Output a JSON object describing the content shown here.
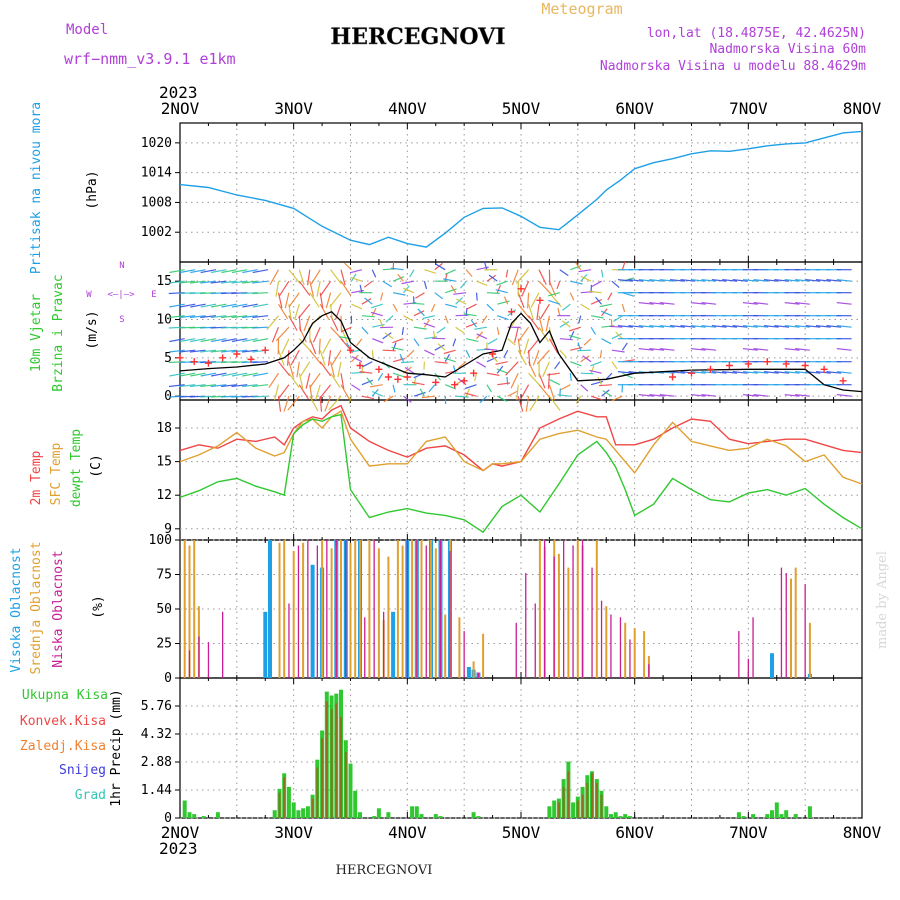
{
  "header": {
    "model_label": "Model",
    "model_value": "wrf−nmm_v3.9.1  e1km",
    "title": "HERCEGNOVI",
    "meteogram_label": "Meteogram",
    "lonlat": "lon,lat (18.4875E, 42.4625N)",
    "elevation": "Nadmorska Visina 60m",
    "model_elevation": "Nadmorska Visina u modelu 88.4629m",
    "year": "2023"
  },
  "footer": {
    "station": "HERCEGNOVI",
    "year": "2023",
    "credit": "made by Angel"
  },
  "colors": {
    "pressure": "#1ea0e6",
    "wind_speed_line": "#000000",
    "gust_marker": "#ff3030",
    "temp_2m": "#f04646",
    "temp_sfc": "#e0a030",
    "dewpoint": "#30c830",
    "cloud_high": "#1ea0e6",
    "cloud_mid": "#e0a030",
    "cloud_low": "#c81e96",
    "precip_total": "#30c830",
    "precip_conv": "#f04646",
    "precip_frozen": "#f08030",
    "precip_snow": "#3c3cdc",
    "precip_hail": "#30c8b4"
  },
  "x_axis": {
    "day_labels": [
      "2NOV",
      "3NOV",
      "4NOV",
      "5NOV",
      "6NOV",
      "7NOV",
      "8NOV"
    ],
    "range_hours": [
      0,
      144
    ]
  },
  "chart_data": [
    {
      "type": "line",
      "panel": "pressure",
      "ylabel_lines": [
        "Pritisak na nivou mora"
      ],
      "unit": "(hPa)",
      "ylim": [
        996,
        1024
      ],
      "yticks": [
        1002,
        1008,
        1014,
        1020
      ],
      "grid": true,
      "series": [
        {
          "x": [
            0,
            6,
            12,
            18,
            24,
            30,
            36,
            40,
            44,
            48,
            52,
            56,
            60,
            64,
            68,
            72,
            76,
            80,
            84,
            88,
            90,
            93,
            96,
            100,
            104,
            108,
            112,
            116,
            120,
            124,
            128,
            132,
            136,
            140,
            144
          ],
          "values": [
            1011.6,
            1011.0,
            1009.5,
            1008.4,
            1006.8,
            1003.2,
            1000.4,
            999.5,
            1001.0,
            999.7,
            999.0,
            1001.8,
            1005.0,
            1006.8,
            1006.9,
            1005.2,
            1003.0,
            1002.5,
            1005.5,
            1008.6,
            1010.5,
            1012.5,
            1014.8,
            1016.0,
            1016.8,
            1017.8,
            1018.4,
            1018.3,
            1018.8,
            1019.4,
            1019.8,
            1020.0,
            1021.0,
            1022.0,
            1022.3
          ]
        }
      ]
    },
    {
      "type": "line",
      "panel": "wind",
      "ylabel_lines": [
        "10m Vjetar",
        "Brzina i Pravac"
      ],
      "unit": "(m/s)",
      "compass_labels": {
        "north": "N",
        "south": "S",
        "west": "W",
        "east": "E",
        "arrows": "<—|—>"
      },
      "ylim": [
        -0.5,
        17.5
      ],
      "yticks": [
        0,
        5,
        10,
        15
      ],
      "grid": true,
      "series": [
        {
          "name": "speed",
          "x": [
            0,
            6,
            12,
            18,
            22,
            24,
            26,
            28,
            30,
            32,
            34,
            36,
            40,
            44,
            48,
            52,
            56,
            60,
            64,
            68,
            70,
            72,
            74,
            76,
            78,
            80,
            84,
            90,
            96,
            108,
            120,
            132,
            136,
            140,
            144
          ],
          "values": [
            3.3,
            3.6,
            3.8,
            4.2,
            5.0,
            6.0,
            7.2,
            9.5,
            10.5,
            11.0,
            9.8,
            7.0,
            5.0,
            4.0,
            3.0,
            2.8,
            2.5,
            4.0,
            5.5,
            6.0,
            9.5,
            10.8,
            9.5,
            7.0,
            8.5,
            5.5,
            2.0,
            2.2,
            3.0,
            3.4,
            3.5,
            3.5,
            1.5,
            0.8,
            0.6
          ]
        },
        {
          "name": "gusts",
          "x": [
            0,
            3,
            6,
            9,
            12,
            15,
            18,
            36,
            38,
            42,
            44,
            46,
            48,
            54,
            58,
            60,
            62,
            66,
            70,
            72,
            76,
            104,
            108,
            112,
            116,
            120,
            124,
            128,
            132,
            136,
            140
          ],
          "values": [
            5.0,
            4.5,
            4.3,
            5.0,
            5.5,
            4.8,
            6.0,
            6.0,
            4.0,
            3.5,
            2.5,
            2.2,
            2.5,
            1.8,
            1.5,
            2.0,
            3.0,
            5.5,
            11.0,
            14.0,
            12.5,
            2.5,
            3.0,
            3.5,
            4.0,
            4.2,
            4.5,
            4.2,
            4.0,
            3.5,
            2.0
          ]
        }
      ]
    },
    {
      "type": "line",
      "panel": "temperature",
      "ylabel_lines": [
        "2m Temp",
        "SFC Temp",
        "dewpt Temp"
      ],
      "unit": "(C)",
      "ylim": [
        8,
        20.5
      ],
      "yticks": [
        9,
        12,
        15,
        18
      ],
      "grid": true,
      "series": [
        {
          "name": "2m Temp",
          "x": [
            0,
            4,
            8,
            12,
            16,
            20,
            22,
            24,
            26,
            28,
            30,
            32,
            34,
            36,
            40,
            44,
            48,
            52,
            56,
            60,
            64,
            66,
            68,
            72,
            76,
            80,
            84,
            88,
            90,
            92,
            96,
            100,
            104,
            108,
            112,
            116,
            120,
            124,
            128,
            132,
            136,
            140,
            144
          ],
          "values": [
            16.0,
            16.5,
            16.2,
            17.0,
            16.8,
            17.2,
            16.5,
            18.0,
            18.6,
            19.0,
            18.8,
            19.6,
            20.0,
            18.0,
            16.8,
            16.0,
            15.4,
            16.2,
            16.4,
            15.6,
            14.2,
            14.8,
            14.6,
            15.0,
            18.0,
            18.8,
            19.5,
            19.0,
            19.0,
            16.5,
            16.5,
            17.0,
            18.0,
            18.8,
            18.6,
            17.0,
            16.6,
            16.8,
            17.0,
            17.0,
            16.5,
            16.0,
            15.8
          ]
        },
        {
          "name": "SFC Temp",
          "x": [
            0,
            4,
            8,
            12,
            16,
            20,
            22,
            24,
            26,
            28,
            30,
            32,
            34,
            36,
            40,
            44,
            48,
            52,
            56,
            60,
            64,
            66,
            68,
            72,
            76,
            80,
            84,
            88,
            90,
            92,
            96,
            100,
            104,
            108,
            112,
            116,
            120,
            124,
            128,
            132,
            136,
            140,
            144
          ],
          "values": [
            15.0,
            15.6,
            16.4,
            17.6,
            16.2,
            15.5,
            15.8,
            17.5,
            18.6,
            18.8,
            18.0,
            19.0,
            19.5,
            17.0,
            14.6,
            14.8,
            14.8,
            16.8,
            17.2,
            15.0,
            14.2,
            14.8,
            14.8,
            15.0,
            17.0,
            17.5,
            17.8,
            17.2,
            17.0,
            16.0,
            14.0,
            16.5,
            18.5,
            16.8,
            16.4,
            16.0,
            16.2,
            17.0,
            16.4,
            15.0,
            15.6,
            13.6,
            13.0
          ]
        },
        {
          "name": "dewpt Temp",
          "x": [
            0,
            4,
            8,
            12,
            16,
            20,
            22,
            24,
            26,
            28,
            30,
            32,
            34,
            36,
            40,
            44,
            48,
            52,
            56,
            60,
            64,
            68,
            72,
            76,
            80,
            84,
            88,
            90,
            92,
            94,
            96,
            100,
            104,
            108,
            112,
            116,
            120,
            124,
            128,
            132,
            136,
            140,
            144
          ],
          "values": [
            11.8,
            12.4,
            13.2,
            13.5,
            12.8,
            12.3,
            12.0,
            17.5,
            18.3,
            18.8,
            18.6,
            19.0,
            19.2,
            12.5,
            10.0,
            10.5,
            10.8,
            10.4,
            10.2,
            9.8,
            8.7,
            11.0,
            12.0,
            10.5,
            13.0,
            15.6,
            16.8,
            15.8,
            14.5,
            12.5,
            10.2,
            11.2,
            13.5,
            12.5,
            11.6,
            11.4,
            12.2,
            12.5,
            12.0,
            12.6,
            11.2,
            10.0,
            9.0
          ]
        }
      ]
    },
    {
      "type": "bar",
      "panel": "clouds",
      "ylabel_lines": [
        "Visoka Oblacnost",
        "Srednja Oblacnost",
        "Niska Oblacnost"
      ],
      "unit": "(%)",
      "ylim": [
        0,
        100
      ],
      "yticks": [
        0,
        25,
        50,
        75,
        100
      ],
      "grid": true,
      "series": [
        {
          "name": "Visoka Oblacnost",
          "x": [
            18,
            19,
            28,
            30,
            33,
            35,
            38,
            45,
            48,
            50,
            53,
            55,
            57,
            61,
            62,
            63,
            125,
            133
          ],
          "values": [
            48,
            100,
            82,
            80,
            100,
            100,
            100,
            48,
            100,
            100,
            100,
            100,
            100,
            8,
            6,
            4,
            18,
            3
          ]
        },
        {
          "name": "Srednja Oblacnost",
          "x": [
            1,
            2,
            3,
            4,
            21,
            22,
            24,
            26,
            30,
            32,
            33,
            34,
            36,
            37,
            38,
            40,
            42,
            43,
            44,
            46,
            47,
            49,
            50,
            51,
            53,
            54,
            56,
            57,
            59,
            62,
            64,
            76,
            77,
            79,
            80,
            82,
            84,
            85,
            88,
            90,
            94,
            96,
            98,
            99,
            129,
            130,
            133
          ],
          "values": [
            100,
            96,
            100,
            52,
            98,
            100,
            92,
            98,
            100,
            94,
            96,
            100,
            98,
            100,
            100,
            100,
            94,
            42,
            88,
            100,
            96,
            100,
            100,
            100,
            100,
            94,
            46,
            100,
            44,
            12,
            32,
            100,
            95,
            100,
            90,
            80,
            100,
            96,
            100,
            52,
            40,
            36,
            34,
            16,
            72,
            80,
            40
          ]
        },
        {
          "name": "Niska Oblacnost",
          "x": [
            2,
            4,
            6,
            9,
            23,
            25,
            27,
            29,
            31,
            33,
            35,
            39,
            41,
            43,
            48,
            50,
            52,
            55,
            57,
            60,
            63,
            71,
            73,
            75,
            77,
            79,
            81,
            83,
            85,
            87,
            89,
            91,
            93,
            95,
            99,
            118,
            120,
            121,
            127,
            128,
            132
          ],
          "values": [
            20,
            30,
            26,
            48,
            54,
            96,
            100,
            96,
            100,
            100,
            100,
            44,
            100,
            48,
            100,
            100,
            96,
            100,
            92,
            34,
            4,
            40,
            76,
            54,
            100,
            88,
            100,
            96,
            100,
            80,
            56,
            46,
            44,
            28,
            10,
            34,
            14,
            44,
            80,
            76,
            68
          ]
        }
      ]
    },
    {
      "type": "bar",
      "panel": "precip",
      "ylabel_lines": [
        "Ukupna Kisa",
        "Konvek.Kisa",
        "Zaledj.Kisa",
        "Snijeg",
        "Grad"
      ],
      "unit": "1hr Precip (mm)",
      "ylim": [
        0,
        7.2
      ],
      "yticks": [
        0,
        1.44,
        2.88,
        4.32,
        5.76
      ],
      "grid": true,
      "series": [
        {
          "name": "Ukupna Kisa",
          "x": [
            1,
            2,
            3,
            5,
            8,
            20,
            21,
            22,
            23,
            24,
            25,
            26,
            27,
            28,
            29,
            30,
            31,
            32,
            33,
            34,
            35,
            36,
            37,
            38,
            41,
            42,
            44,
            49,
            50,
            51,
            54,
            55,
            62,
            63,
            78,
            79,
            80,
            81,
            82,
            83,
            84,
            85,
            86,
            87,
            88,
            89,
            90,
            91,
            92,
            93,
            94,
            95,
            118,
            119,
            121,
            124,
            125,
            126,
            127,
            128,
            130,
            133
          ],
          "values": [
            0.9,
            0.3,
            0.2,
            0.1,
            0.3,
            0.4,
            1.5,
            2.3,
            1.6,
            0.8,
            0.4,
            0.5,
            0.6,
            1.2,
            3.0,
            4.5,
            6.5,
            6.3,
            6.4,
            6.6,
            4.0,
            2.8,
            1.4,
            0.3,
            0.1,
            0.5,
            0.3,
            0.6,
            0.6,
            0.2,
            0.2,
            0.1,
            0.3,
            0.1,
            0.6,
            0.9,
            1.0,
            2.0,
            2.9,
            0.8,
            1.1,
            1.6,
            2.2,
            2.4,
            2.0,
            1.4,
            0.6,
            0.2,
            0.3,
            0.1,
            0.2,
            0.1,
            0.3,
            0.1,
            0.2,
            0.2,
            0.4,
            0.8,
            0.2,
            0.4,
            0.2,
            0.6
          ]
        },
        {
          "name": "Konvek.Kisa",
          "x": [
            21,
            22,
            28,
            29,
            30,
            31,
            32,
            33,
            34,
            35,
            80,
            81,
            82,
            84,
            85,
            86,
            87,
            88,
            89
          ],
          "values": [
            1.3,
            2.1,
            1.0,
            2.6,
            4.1,
            6.0,
            5.6,
            5.9,
            5.2,
            3.4,
            0.8,
            1.6,
            2.4,
            0.9,
            1.2,
            1.8,
            2.3,
            1.8,
            1.2
          ]
        }
      ]
    }
  ]
}
